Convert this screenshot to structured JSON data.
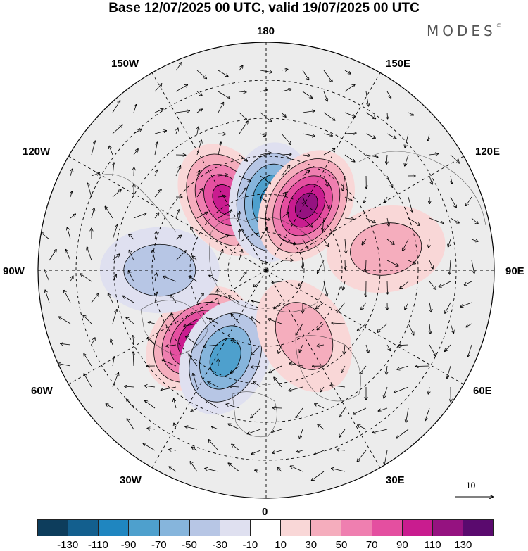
{
  "title": "Base 12/07/2025 00 UTC, valid 19/07/2025 00 UTC",
  "brand": "MODES",
  "brand_mark": "©",
  "longitude_labels": {
    "top": "180",
    "bottom": "0",
    "left": "90W",
    "right": "90E",
    "upper_left_1": "150W",
    "upper_left_2": "120W",
    "upper_right_1": "150E",
    "upper_right_2": "120E",
    "lower_left_1": "60W",
    "lower_left_2": "30W",
    "lower_right_1": "60E",
    "lower_right_2": "30E"
  },
  "reference_vector_label": "10",
  "colorbar": {
    "ticks": [
      "-130",
      "-110",
      "-90",
      "-70",
      "-50",
      "-30",
      "-10",
      "10",
      "30",
      "50",
      "70",
      "90",
      "110",
      "130"
    ],
    "colors": [
      "#0d3d5c",
      "#135f8e",
      "#1f86c0",
      "#4ea0cd",
      "#86b5dc",
      "#b7c6e5",
      "#dfe0f0",
      "#ffffff",
      "#f9d7d7",
      "#f5adbd",
      "#ef7fb0",
      "#e44fa0",
      "#c91c8f",
      "#951280",
      "#5a0a6e"
    ]
  },
  "anomaly_centers": [
    {
      "name": "lon-150W-lat-60N",
      "lon": -150,
      "lat": 58,
      "value": 100,
      "sign": "positive"
    },
    {
      "name": "lon-175E-lat-65N",
      "lon": 175,
      "lat": 63,
      "value": -100,
      "sign": "negative"
    },
    {
      "name": "lon-145E-lat-60N",
      "lon": 148,
      "lat": 60,
      "value": 110,
      "sign": "positive"
    },
    {
      "name": "lon-40W-lat-55N",
      "lon": -45,
      "lat": 52,
      "value": 115,
      "sign": "positive"
    },
    {
      "name": "lon-25W-lat-55N",
      "lon": -25,
      "lat": 52,
      "value": -80,
      "sign": "negative"
    },
    {
      "name": "lon-30E-lat-62N",
      "lon": 30,
      "lat": 60,
      "value": 40,
      "sign": "positive"
    },
    {
      "name": "lon-90W-lat-50N",
      "lon": -90,
      "lat": 48,
      "value": -40,
      "sign": "negative"
    },
    {
      "name": "lon-100E-lat-45N",
      "lon": 100,
      "lat": 42,
      "value": 30,
      "sign": "positive"
    }
  ]
}
